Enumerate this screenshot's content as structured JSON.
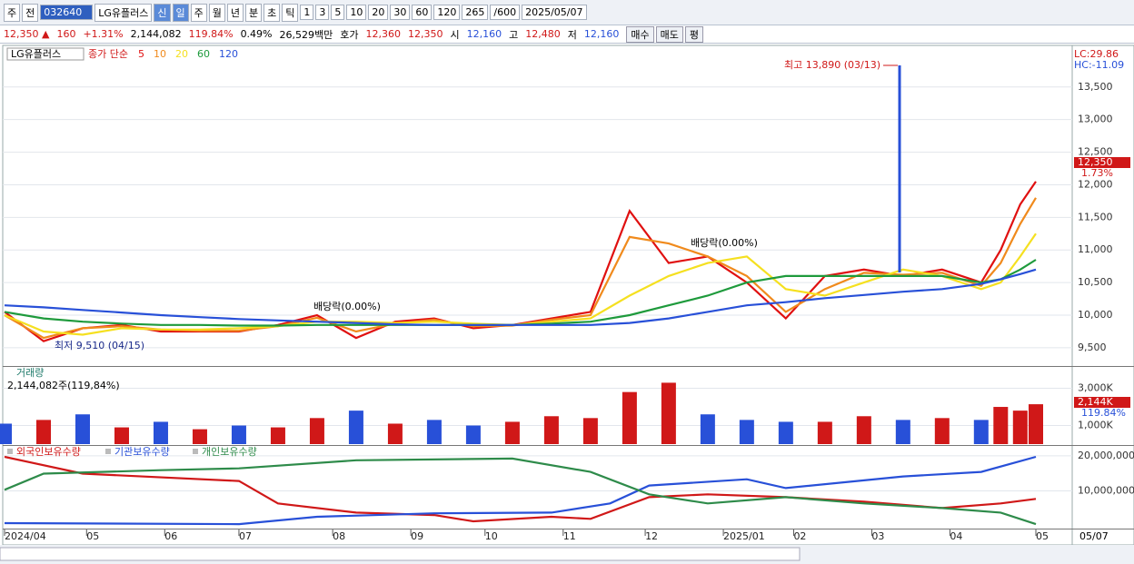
{
  "toolbar": [
    "주",
    "전",
    "032640",
    "LG유플러스",
    "신",
    "일",
    "주",
    "월",
    "년",
    "분",
    "초",
    "틱",
    "1",
    "3",
    "5",
    "10",
    "20",
    "30",
    "60",
    "120",
    "265",
    "/600",
    "2025/05/07"
  ],
  "quote": [
    "12,350 ▲",
    "160",
    "+1.31%",
    "2,144,082",
    "119.84%",
    "0.49%",
    "26,529백만",
    "호가",
    "12,360",
    "12,350",
    "시",
    "12,160",
    "고",
    "12,480",
    "저",
    "12,160",
    "매수",
    "매도",
    "평"
  ],
  "chart_data": [
    {
      "type": "line",
      "legend_name": "LG유플러스",
      "legend_label": "종가 단순",
      "x": [
        0,
        10,
        20,
        30,
        40,
        50,
        60,
        70,
        80,
        90,
        100,
        110,
        120,
        130,
        140,
        150,
        160,
        170,
        180,
        190,
        200,
        210,
        220,
        230,
        240,
        250,
        255,
        260,
        264
      ],
      "xlim": [
        0,
        264
      ],
      "ylim": [
        9220,
        14110
      ],
      "yticks": [
        {
          "value": 9500,
          "label": "9,500"
        },
        {
          "value": 10000,
          "label": "10,000"
        },
        {
          "value": 10500,
          "label": "10,500"
        },
        {
          "value": 11000,
          "label": "11,000"
        },
        {
          "value": 11500,
          "label": "11,500"
        },
        {
          "value": 12000,
          "label": "12,000"
        },
        {
          "value": 12500,
          "label": "12,500"
        },
        {
          "value": 13000,
          "label": "13,000"
        },
        {
          "value": 13500,
          "label": "13,500"
        }
      ],
      "grid": true,
      "series": [
        {
          "name": "5",
          "color": "#e01010",
          "values": [
            10050,
            9600,
            9800,
            9850,
            9750,
            9750,
            9750,
            9850,
            10000,
            9650,
            9900,
            9950,
            9800,
            9850,
            9950,
            10050,
            11600,
            10800,
            10900,
            10500,
            9950,
            10600,
            10700,
            10600,
            10700,
            10500,
            11000,
            11700,
            12050
          ]
        },
        {
          "name": "10",
          "color": "#f08a1c",
          "values": [
            10000,
            9650,
            9800,
            9830,
            9780,
            9760,
            9760,
            9830,
            9960,
            9750,
            9870,
            9930,
            9830,
            9840,
            9930,
            10000,
            11200,
            11100,
            10900,
            10600,
            10050,
            10400,
            10650,
            10620,
            10650,
            10450,
            10800,
            11400,
            11800
          ]
        },
        {
          "name": "20",
          "color": "#f5e020",
          "values": [
            10000,
            9750,
            9700,
            9800,
            9780,
            9780,
            9800,
            9830,
            9900,
            9900,
            9880,
            9900,
            9870,
            9850,
            9900,
            9950,
            10300,
            10600,
            10800,
            10900,
            10400,
            10300,
            10500,
            10700,
            10600,
            10400,
            10500,
            10900,
            11250
          ]
        },
        {
          "name": "60",
          "color": "#1e9a3c",
          "values": [
            10050,
            9950,
            9900,
            9870,
            9850,
            9850,
            9840,
            9840,
            9850,
            9850,
            9850,
            9850,
            9850,
            9850,
            9870,
            9900,
            10000,
            10150,
            10300,
            10500,
            10600,
            10600,
            10600,
            10600,
            10600,
            10500,
            10550,
            10700,
            10850
          ]
        },
        {
          "name": "120",
          "color": "#2850d8",
          "values": [
            10150,
            10120,
            10080,
            10040,
            10000,
            9970,
            9940,
            9920,
            9900,
            9880,
            9860,
            9850,
            9850,
            9850,
            9850,
            9850,
            9880,
            9950,
            10050,
            10150,
            10200,
            10260,
            10310,
            10360,
            10400,
            10480,
            10550,
            10630,
            10700
          ]
        }
      ],
      "annotations": [
        "배당락(0.00%)",
        "배당락(0.00%)",
        "최고 13,890 (03/13)",
        "최저 9,510 (04/15)"
      ],
      "right_labels": [
        "LC:29.86",
        "HC:-11.09"
      ],
      "price_tag": "12,350",
      "price_pct": "1.73%"
    },
    {
      "type": "bar",
      "title": "거래량",
      "subtitle": "2,144,082주(119,84%)",
      "x": [
        0,
        10,
        20,
        30,
        40,
        50,
        60,
        70,
        80,
        90,
        100,
        110,
        120,
        130,
        140,
        150,
        160,
        170,
        180,
        190,
        200,
        210,
        220,
        230,
        240,
        250,
        255,
        260,
        264
      ],
      "values": [
        1100,
        1300,
        1600,
        900,
        1200,
        800,
        1000,
        900,
        1400,
        1800,
        1100,
        1300,
        1000,
        1200,
        1500,
        1400,
        2800,
        3300,
        1600,
        1300,
        1200,
        1200,
        1500,
        1300,
        1400,
        1300,
        2000,
        1800,
        2144
      ],
      "colors": [
        "#2850d8",
        "#d01818",
        "#2850d8",
        "#d01818",
        "#2850d8",
        "#d01818",
        "#2850d8",
        "#d01818",
        "#d01818",
        "#2850d8",
        "#d01818",
        "#2850d8",
        "#2850d8",
        "#d01818",
        "#d01818",
        "#d01818",
        "#d01818",
        "#d01818",
        "#2850d8",
        "#2850d8",
        "#2850d8",
        "#d01818",
        "#d01818",
        "#2850d8",
        "#d01818",
        "#2850d8",
        "#d01818",
        "#d01818",
        "#d01818"
      ],
      "xlim": [
        0,
        264
      ],
      "ylim": [
        0,
        4150
      ],
      "yticks": [
        {
          "value": 1000,
          "label": "1,000K"
        },
        {
          "value": 3000,
          "label": "3,000K"
        }
      ],
      "grid": true,
      "price_tag": "2,144K",
      "price_pct": "119.84%"
    },
    {
      "type": "line",
      "xlim": [
        0,
        264
      ],
      "ylim": [
        -500000,
        22800000
      ],
      "yticks": [
        {
          "value": 10000000,
          "label": "10,000,000"
        },
        {
          "value": 20000000,
          "label": "20,000,000"
        }
      ],
      "grid": true,
      "xticks": [
        {
          "value": 0,
          "label": "2024/04"
        },
        {
          "value": 21,
          "label": "05"
        },
        {
          "value": 41,
          "label": "06"
        },
        {
          "value": 60,
          "label": "07"
        },
        {
          "value": 84,
          "label": "08"
        },
        {
          "value": 104,
          "label": "09"
        },
        {
          "value": 123,
          "label": "10"
        },
        {
          "value": 143,
          "label": "11"
        },
        {
          "value": 164,
          "label": "12"
        },
        {
          "value": 184,
          "label": "2025/01"
        },
        {
          "value": 202,
          "label": "02"
        },
        {
          "value": 222,
          "label": "03"
        },
        {
          "value": 242,
          "label": "04"
        },
        {
          "value": 264,
          "label": "05"
        }
      ],
      "cursor_date": "05/07",
      "series": [
        {
          "name": "외국인보유수량",
          "color": "#d01818",
          "x": [
            0,
            20,
            60,
            70,
            90,
            110,
            120,
            140,
            150,
            165,
            180,
            200,
            220,
            240,
            255,
            264
          ],
          "values": [
            19700000,
            14900000,
            12800000,
            6400000,
            3800000,
            3100000,
            1300000,
            2600000,
            2000000,
            8200000,
            9000000,
            8200000,
            6900000,
            5100000,
            6400000,
            7700000
          ]
        },
        {
          "name": "기관보유수량",
          "color": "#2850d8",
          "x": [
            0,
            60,
            80,
            110,
            140,
            155,
            165,
            190,
            200,
            230,
            250,
            264
          ],
          "values": [
            800000,
            500000,
            2600000,
            3600000,
            3800000,
            6400000,
            11500000,
            13300000,
            10800000,
            14100000,
            15400000,
            19700000
          ]
        },
        {
          "name": "개인보유수량",
          "color": "#2e8b4a",
          "x": [
            0,
            10,
            40,
            60,
            90,
            130,
            150,
            165,
            180,
            200,
            220,
            240,
            255,
            264
          ],
          "values": [
            10300000,
            14900000,
            15900000,
            16400000,
            18700000,
            19200000,
            15400000,
            9000000,
            6400000,
            8200000,
            6400000,
            5100000,
            3800000,
            500000
          ]
        }
      ]
    }
  ]
}
